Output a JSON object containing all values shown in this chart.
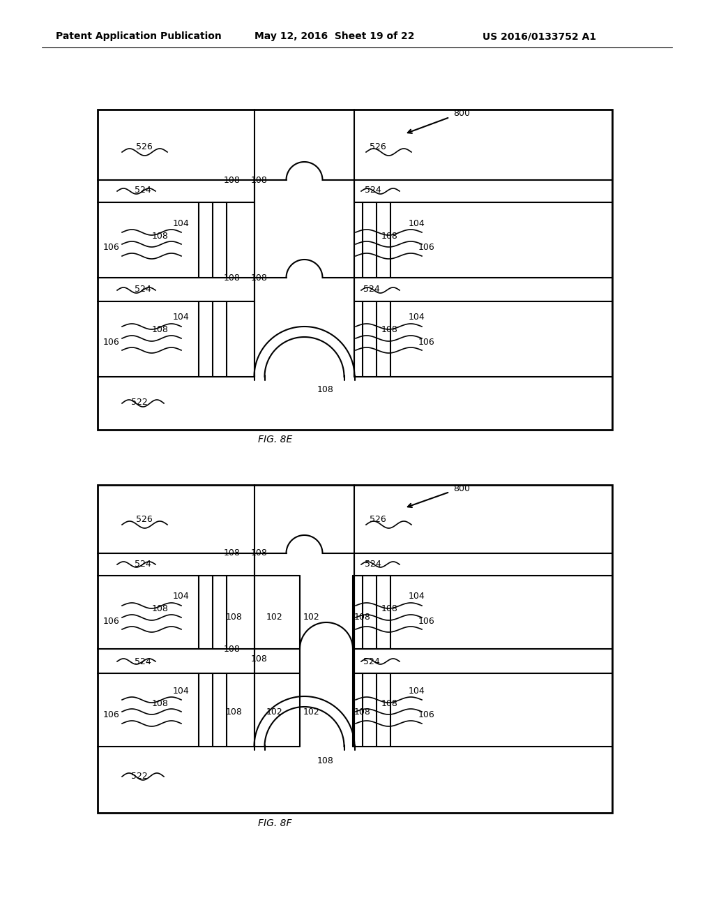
{
  "header_left": "Patent Application Publication",
  "header_mid": "May 12, 2016  Sheet 19 of 22",
  "header_right": "US 2016/0133752 A1",
  "fig_label_e": "FIG. 8E",
  "fig_label_f": "FIG. 8F",
  "bg_color": "#ffffff",
  "line_color": "#000000"
}
